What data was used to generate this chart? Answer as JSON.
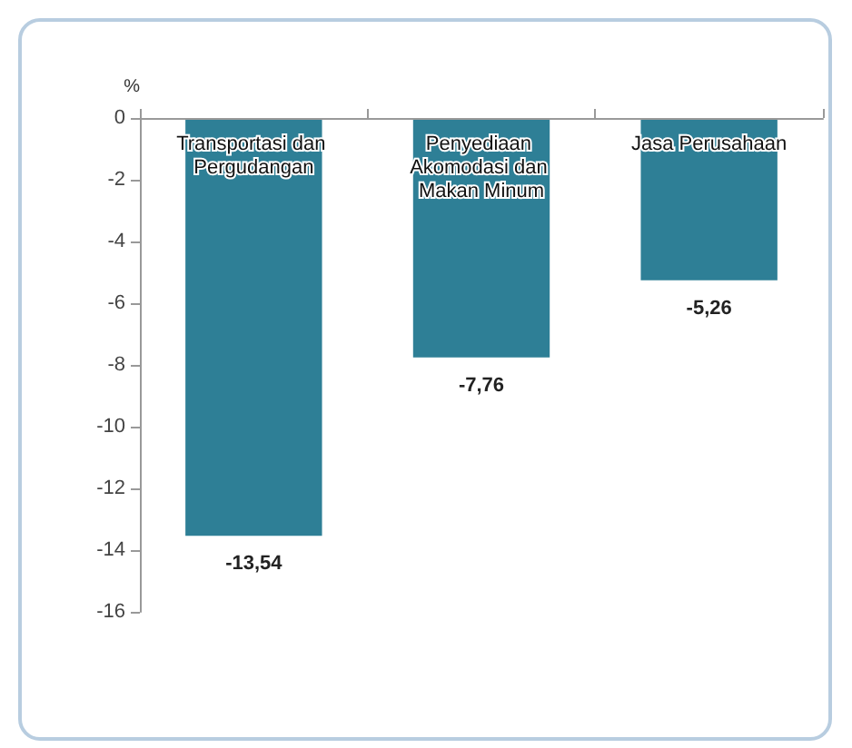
{
  "chart_data": {
    "type": "bar",
    "ylabel": "%",
    "categories": [
      "Transportasi dan Pergudangan",
      "Penyediaan Akomodasi dan Makan Minum",
      "Jasa Perusahaan"
    ],
    "values": [
      -13.54,
      -7.76,
      -5.26
    ],
    "color": "#2e7f96",
    "value_labels": [
      "-13,54",
      "-7,76",
      "-5,26"
    ],
    "ylim": [
      -16,
      0
    ],
    "yticks": [
      -16,
      -14,
      -12,
      -10,
      -8,
      -6,
      -4,
      -2,
      0
    ],
    "grid": false
  }
}
